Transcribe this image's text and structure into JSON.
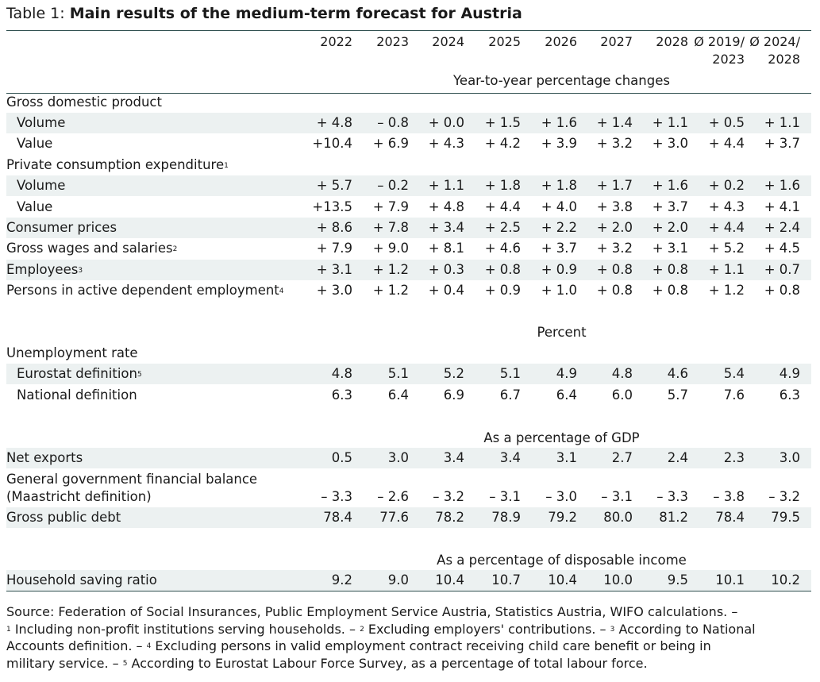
{
  "title": {
    "prefix": "Table 1: ",
    "main": "Main results of the medium-term forecast for Austria"
  },
  "columns": [
    {
      "line1": "2022",
      "line2": ""
    },
    {
      "line1": "2023",
      "line2": ""
    },
    {
      "line1": "2024",
      "line2": ""
    },
    {
      "line1": "2025",
      "line2": ""
    },
    {
      "line1": "2026",
      "line2": ""
    },
    {
      "line1": "2027",
      "line2": ""
    },
    {
      "line1": "2028",
      "line2": ""
    },
    {
      "line1": "Ø 2019/",
      "line2": "2023"
    },
    {
      "line1": "Ø 2024/",
      "line2": "2028"
    }
  ],
  "sections": {
    "yoy": "Year-to-year percentage changes",
    "percent": "Percent",
    "gdp": "As a percentage of GDP",
    "disp": "As a percentage of disposable income"
  },
  "rows": {
    "gdp_head": {
      "label": "Gross domestic product"
    },
    "gdp_volume": {
      "label": "Volume",
      "values": [
        "+ 4.8",
        "– 0.8",
        "+ 0.0",
        "+ 1.5",
        "+ 1.6",
        "+ 1.4",
        "+ 1.1",
        "+ 0.5",
        "+ 1.1"
      ]
    },
    "gdp_value": {
      "label": "Value",
      "values": [
        "+10.4",
        "+ 6.9",
        "+ 4.3",
        "+ 4.2",
        "+ 3.9",
        "+ 3.2",
        "+ 3.0",
        "+ 4.4",
        "+ 3.7"
      ]
    },
    "pce_head": {
      "label": "Private consumption expenditure",
      "fn": "1"
    },
    "pce_volume": {
      "label": "Volume",
      "values": [
        "+ 5.7",
        "– 0.2",
        "+ 1.1",
        "+ 1.8",
        "+ 1.8",
        "+ 1.7",
        "+ 1.6",
        "+ 0.2",
        "+ 1.6"
      ]
    },
    "pce_value": {
      "label": "Value",
      "values": [
        "+13.5",
        "+ 7.9",
        "+ 4.8",
        "+ 4.4",
        "+ 4.0",
        "+ 3.8",
        "+ 3.7",
        "+ 4.3",
        "+ 4.1"
      ]
    },
    "cpi": {
      "label": "Consumer prices",
      "values": [
        "+ 8.6",
        "+ 7.8",
        "+ 3.4",
        "+ 2.5",
        "+ 2.2",
        "+ 2.0",
        "+ 2.0",
        "+ 4.4",
        "+ 2.4"
      ]
    },
    "wages": {
      "label": "Gross wages and salaries",
      "fn": "2",
      "values": [
        "+ 7.9",
        "+ 9.0",
        "+ 8.1",
        "+ 4.6",
        "+ 3.7",
        "+ 3.2",
        "+ 3.1",
        "+ 5.2",
        "+ 4.5"
      ]
    },
    "employees": {
      "label": "Employees",
      "fn": "3",
      "values": [
        "+ 3.1",
        "+ 1.2",
        "+ 0.3",
        "+ 0.8",
        "+ 0.9",
        "+ 0.8",
        "+ 0.8",
        "+ 1.1",
        "+ 0.7"
      ]
    },
    "persons": {
      "label": "Persons in active dependent employment",
      "fn": "4",
      "values": [
        "+ 3.0",
        "+ 1.2",
        "+ 0.4",
        "+ 0.9",
        "+ 1.0",
        "+ 0.8",
        "+ 0.8",
        "+ 1.2",
        "+ 0.8"
      ]
    },
    "unemp_head": {
      "label": "Unemployment rate"
    },
    "unemp_eurostat": {
      "label": "Eurostat definition",
      "fn": "5",
      "values": [
        "4.8",
        "5.1",
        "5.2",
        "5.1",
        "4.9",
        "4.8",
        "4.6",
        "5.4",
        "4.9"
      ]
    },
    "unemp_national": {
      "label": "National definition",
      "values": [
        "6.3",
        "6.4",
        "6.9",
        "6.7",
        "6.4",
        "6.0",
        "5.7",
        "7.6",
        "6.3"
      ]
    },
    "net_exports": {
      "label": "Net exports",
      "values": [
        "0.5",
        "3.0",
        "3.4",
        "3.4",
        "3.1",
        "2.7",
        "2.4",
        "2.3",
        "3.0"
      ]
    },
    "gov_balance": {
      "label": "General government financial balance",
      "label2": "(Maastricht definition)",
      "values": [
        "– 3.3",
        "– 2.6",
        "– 3.2",
        "– 3.1",
        "– 3.0",
        "– 3.1",
        "– 3.3",
        "– 3.8",
        "– 3.2"
      ]
    },
    "public_debt": {
      "label": "Gross public debt",
      "values": [
        "78.4",
        "77.6",
        "78.2",
        "78.9",
        "79.2",
        "80.0",
        "81.2",
        "78.4",
        "79.5"
      ]
    },
    "saving": {
      "label": "Household saving ratio",
      "values": [
        "9.2",
        "9.0",
        "10.4",
        "10.7",
        "10.4",
        "10.0",
        "9.5",
        "10.1",
        "10.2"
      ]
    }
  },
  "footnotes": {
    "line1": "Source: Federation of Social Insurances, Public Employment Service Austria, Statistics Austria, WIFO calculations. –",
    "l2_fn1": "1",
    "l2_a": " Including non-profit institutions serving households. – ",
    "l2_fn2": "2",
    "l2_b": " Excluding employers' contributions. – ",
    "l2_fn3": "3",
    "l2_c": " According to National",
    "l3_a": "Accounts definition. – ",
    "l3_fn4": "4",
    "l3_b": " Excluding persons in valid employment contract receiving child care benefit or being in",
    "l4_a": "military service. – ",
    "l4_fn5": "5",
    "l4_b": " According to Eurostat Labour Force Survey, as a percentage of total labour force."
  }
}
